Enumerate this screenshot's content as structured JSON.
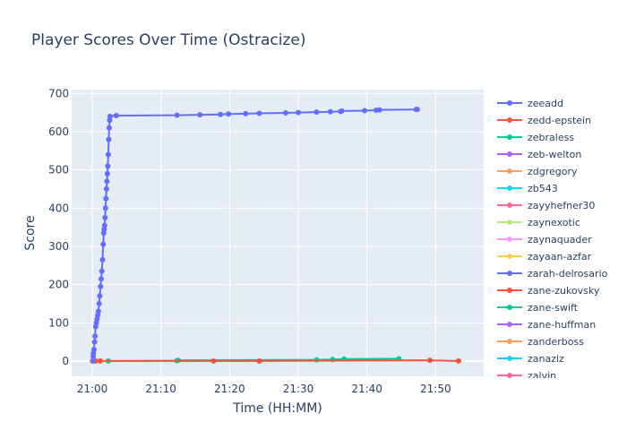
{
  "chart_data": {
    "type": "line",
    "title": "Player Scores Over Time (Ostracize)",
    "xlabel": "Time (HH:MM)",
    "ylabel": "Score",
    "x_unit": "HH:MM",
    "xlim": [
      "20:57",
      "21:57"
    ],
    "ylim": [
      -40,
      710
    ],
    "x_ticks": [
      "21:00",
      "21:10",
      "21:20",
      "21:30",
      "21:40",
      "21:50"
    ],
    "y_ticks": [
      0,
      100,
      200,
      300,
      400,
      500,
      600,
      700
    ],
    "grid": true,
    "legend_position": "right",
    "series": [
      {
        "name": "zeeadd",
        "color": "#636efa",
        "x": [
          "21:00:05",
          "21:00:08",
          "21:00:10",
          "21:00:15",
          "21:00:20",
          "21:00:24",
          "21:00:30",
          "21:00:36",
          "21:00:42",
          "21:00:48",
          "21:00:54",
          "21:01:00",
          "21:01:06",
          "21:01:12",
          "21:01:18",
          "21:01:24",
          "21:01:30",
          "21:01:36",
          "21:01:40",
          "21:01:44",
          "21:01:48",
          "21:01:52",
          "21:01:56",
          "21:02:00",
          "21:02:04",
          "21:02:08",
          "21:02:12",
          "21:02:16",
          "21:02:20",
          "21:02:24",
          "21:02:28",
          "21:02:32",
          "21:02:36",
          "21:03:30",
          "21:12:20",
          "21:15:40",
          "21:18:40",
          "21:19:50",
          "21:22:20",
          "21:24:20",
          "21:28:10",
          "21:30:00",
          "21:32:40",
          "21:34:40",
          "21:36:10",
          "21:36:20",
          "21:39:40",
          "21:41:20",
          "21:41:50",
          "21:47:10",
          "21:47:20"
        ],
        "y": [
          0,
          12,
          20,
          30,
          50,
          65,
          90,
          100,
          110,
          120,
          130,
          150,
          170,
          195,
          215,
          235,
          265,
          305,
          335,
          345,
          355,
          375,
          400,
          425,
          450,
          470,
          490,
          510,
          540,
          580,
          610,
          630,
          640,
          642,
          643,
          644,
          645,
          646,
          647,
          648,
          649,
          650,
          651,
          652,
          653,
          654,
          655,
          656,
          657,
          658,
          658
        ]
      },
      {
        "name": "zedd-epstein",
        "color": "#ef553b",
        "x": [
          "21:00:30",
          "21:01:10",
          "21:17:40",
          "21:24:20",
          "21:49:10",
          "21:53:20"
        ],
        "y": [
          0,
          0,
          0,
          0,
          2,
          0
        ]
      },
      {
        "name": "zebraless",
        "color": "#00cc96",
        "x": [
          "21:02:20",
          "21:12:20",
          "21:12:30",
          "21:32:40",
          "21:35:00",
          "21:36:40",
          "21:44:40"
        ],
        "y": [
          0,
          1,
          2,
          3,
          4,
          5,
          6
        ]
      },
      {
        "name": "zeb-welton",
        "color": "#ab63fa",
        "x": [
          "21:24:20"
        ],
        "y": [
          0
        ]
      },
      {
        "name": "zdgregory",
        "color": "#ffa15a",
        "x": [
          "21:00:00"
        ],
        "y": [
          0
        ]
      },
      {
        "name": "zb543",
        "color": "#19d3f3",
        "x": [
          "21:00:20"
        ],
        "y": [
          0
        ]
      },
      {
        "name": "zayyhefner30",
        "color": "#ff6692",
        "x": [],
        "y": []
      },
      {
        "name": "zaynexotic",
        "color": "#b6e880",
        "x": [],
        "y": []
      },
      {
        "name": "zaynaquader",
        "color": "#ff97ff",
        "x": [],
        "y": []
      },
      {
        "name": "zayaan-azfar",
        "color": "#fecb52",
        "x": [],
        "y": []
      },
      {
        "name": "zarah-delrosario",
        "color": "#636efa",
        "x": [],
        "y": []
      },
      {
        "name": "zane-zukovsky",
        "color": "#ef553b",
        "x": [],
        "y": []
      },
      {
        "name": "zane-swift",
        "color": "#00cc96",
        "x": [],
        "y": []
      },
      {
        "name": "zane-huffman",
        "color": "#ab63fa",
        "x": [],
        "y": []
      },
      {
        "name": "zanderboss",
        "color": "#ffa15a",
        "x": [],
        "y": []
      },
      {
        "name": "zanaziz",
        "color": "#19d3f3",
        "x": [],
        "y": []
      },
      {
        "name": "zalvin",
        "color": "#ff6692",
        "x": [],
        "y": []
      }
    ]
  }
}
